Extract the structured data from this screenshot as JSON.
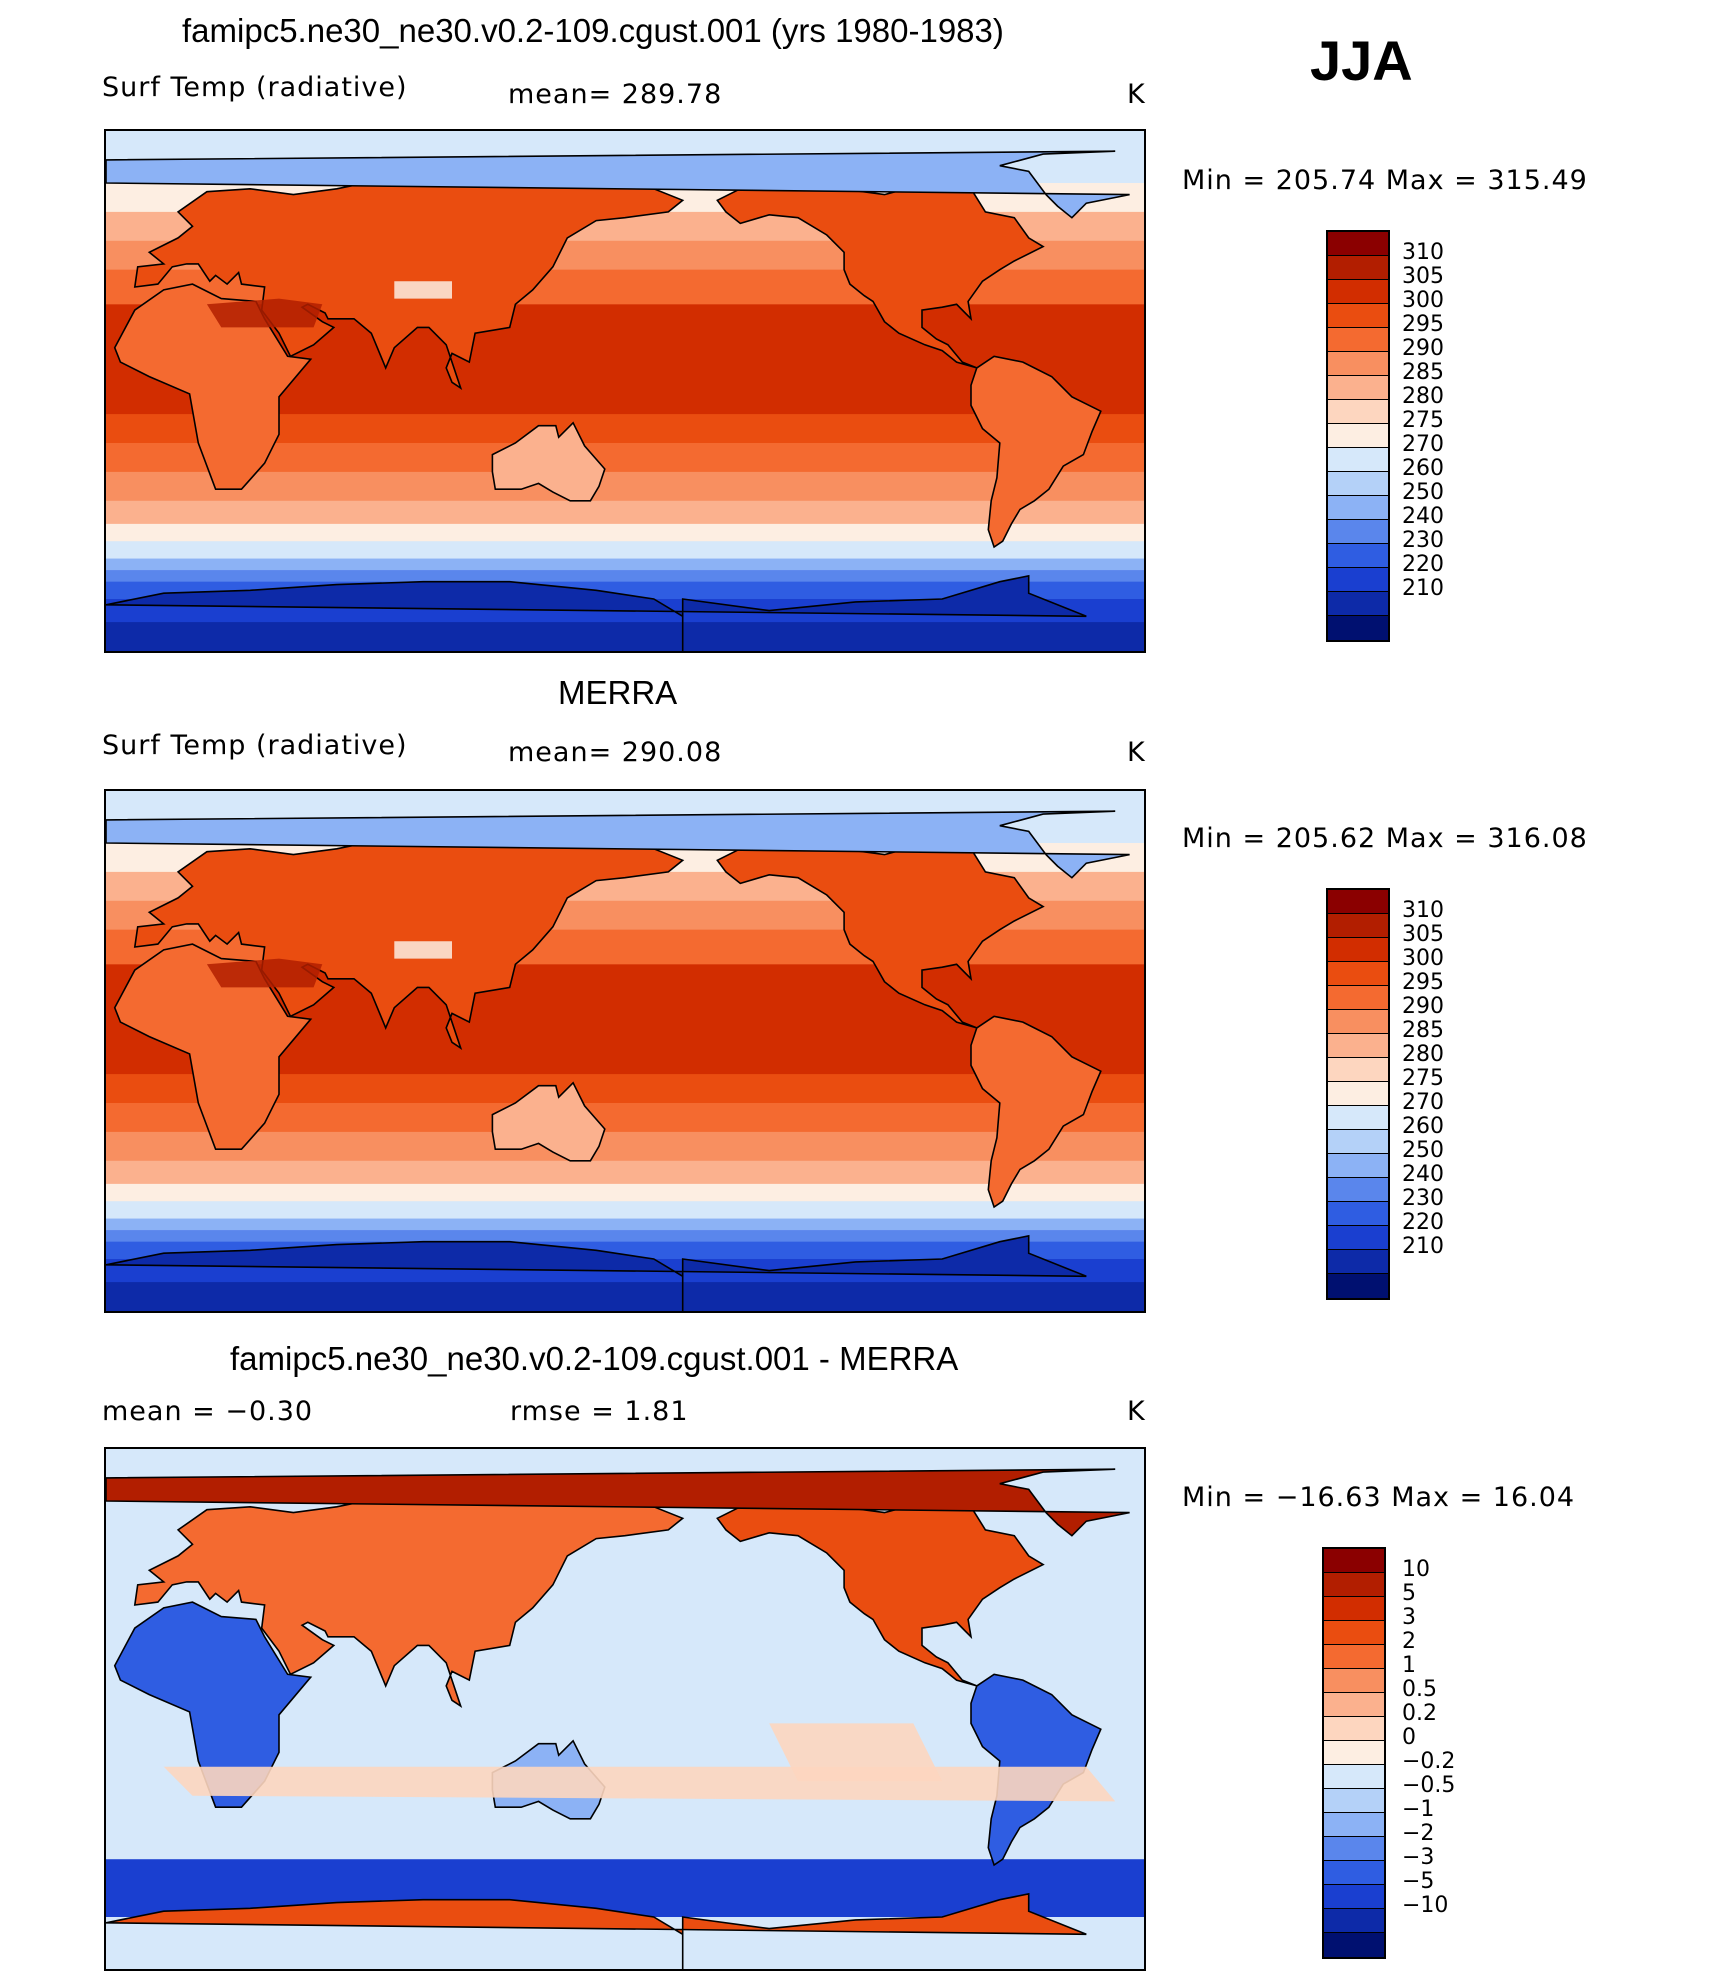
{
  "season": "JJA",
  "panels": [
    {
      "title": "famipc5.ne30_ne30.v0.2-109.cgust.001 (yrs 1980-1983)",
      "left_label": "Surf Temp (radiative)",
      "center_label": "mean= 289.78",
      "units": "K",
      "minmax": "Min = 205.74 Max = 315.49",
      "field": "abs"
    },
    {
      "title": "MERRA",
      "left_label": "Surf Temp (radiative)",
      "center_label": "mean= 290.08",
      "units": "K",
      "minmax": "Min = 205.62 Max = 316.08",
      "field": "abs"
    },
    {
      "title": "famipc5.ne30_ne30.v0.2-109.cgust.001 - MERRA",
      "left_label": "mean = −0.30",
      "center_label": "rmse = 1.81",
      "units": "K",
      "minmax": "Min = −16.63 Max = 16.04",
      "field": "diff"
    }
  ],
  "abs_colorbar": {
    "labels": [
      "310",
      "305",
      "300",
      "295",
      "290",
      "285",
      "280",
      "275",
      "270",
      "260",
      "250",
      "240",
      "230",
      "220",
      "210"
    ],
    "colors": [
      "#8b0000",
      "#b21e00",
      "#d22d00",
      "#ea4d10",
      "#f46a30",
      "#f88f60",
      "#fbb18e",
      "#fdd6bf",
      "#fdeee2",
      "#d6e8fa",
      "#b4d1f8",
      "#8cb2f5",
      "#5a86ec",
      "#2f5de2",
      "#1a3fd0",
      "#0d2aa8",
      "#001070"
    ]
  },
  "diff_colorbar": {
    "labels": [
      "10",
      "5",
      "3",
      "2",
      "1",
      "0.5",
      "0.2",
      "0",
      "−0.2",
      "−0.5",
      "−1",
      "−2",
      "−3",
      "−5",
      "−10"
    ],
    "colors": [
      "#8b0000",
      "#b21e00",
      "#d22d00",
      "#ea4d10",
      "#f46a30",
      "#f88f60",
      "#fbb18e",
      "#fdd6bf",
      "#fdeee2",
      "#d6e8fa",
      "#b4d1f8",
      "#8cb2f5",
      "#5a86ec",
      "#2f5de2",
      "#1a3fd0",
      "#0d2aa8",
      "#001070"
    ]
  }
}
